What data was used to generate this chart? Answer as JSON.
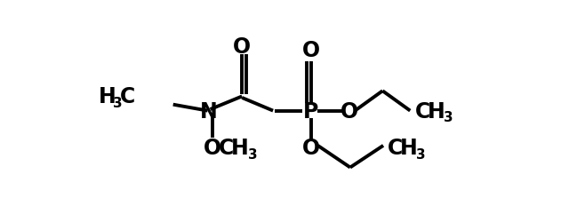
{
  "bg_color": "#ffffff",
  "line_color": "#000000",
  "lw": 2.8,
  "fs": 17,
  "sfs": 11,
  "figsize": [
    6.4,
    2.51
  ],
  "dpi": 100,
  "xlim": [
    0,
    640
  ],
  "ylim": [
    0,
    251
  ]
}
